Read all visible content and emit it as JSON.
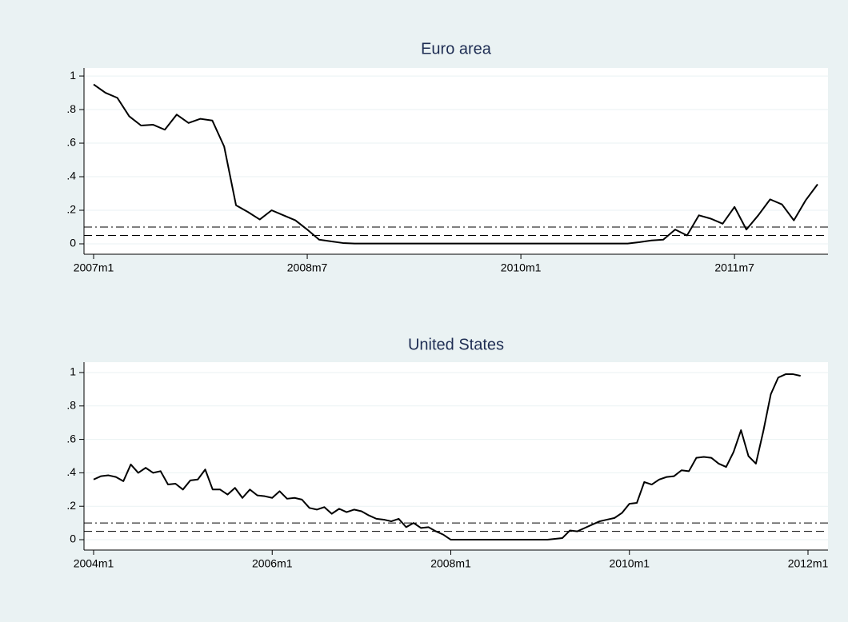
{
  "chart_data": [
    {
      "type": "line",
      "title": "Euro area",
      "x": [
        "2007m1",
        "2007m2",
        "2007m3",
        "2007m4",
        "2007m5",
        "2007m6",
        "2007m7",
        "2007m8",
        "2007m9",
        "2007m10",
        "2007m11",
        "2007m12",
        "2008m1",
        "2008m2",
        "2008m3",
        "2008m4",
        "2008m5",
        "2008m6",
        "2008m7",
        "2008m8",
        "2008m9",
        "2008m10",
        "2008m11",
        "2008m12",
        "2009m1",
        "2009m2",
        "2009m3",
        "2009m4",
        "2009m5",
        "2009m6",
        "2009m7",
        "2009m8",
        "2009m9",
        "2009m10",
        "2009m11",
        "2009m12",
        "2010m1",
        "2010m2",
        "2010m3",
        "2010m4",
        "2010m5",
        "2010m6",
        "2010m7",
        "2010m8",
        "2010m9",
        "2010m10",
        "2010m11",
        "2010m12",
        "2011m1",
        "2011m2",
        "2011m3",
        "2011m4",
        "2011m5",
        "2011m6",
        "2011m7",
        "2011m8",
        "2011m9",
        "2011m10",
        "2011m11",
        "2011m12",
        "2012m1",
        "2012m2"
      ],
      "values": [
        0.95,
        0.9,
        0.87,
        0.76,
        0.705,
        0.71,
        0.68,
        0.77,
        0.72,
        0.745,
        0.735,
        0.58,
        0.23,
        0.19,
        0.145,
        0.2,
        0.17,
        0.14,
        0.085,
        0.025,
        0.015,
        0.005,
        0.002,
        0.002,
        0.002,
        0.002,
        0.002,
        0.002,
        0.002,
        0.002,
        0.002,
        0.002,
        0.002,
        0.002,
        0.002,
        0.002,
        0.002,
        0.002,
        0.002,
        0.002,
        0.002,
        0.002,
        0.002,
        0.002,
        0.002,
        0.002,
        0.01,
        0.02,
        0.025,
        0.085,
        0.05,
        0.17,
        0.15,
        0.12,
        0.22,
        0.085,
        0.17,
        0.265,
        0.235,
        0.14,
        0.26,
        0.355
      ],
      "color": "#000000",
      "xticks": [
        "2007m1",
        "2008m7",
        "2010m1",
        "2011m7"
      ],
      "ylim": [
        -0.062,
        1.048
      ],
      "yticks": [
        0,
        {
          "value": 0.2,
          "label": ".2"
        },
        {
          "value": 0.4,
          "label": ".4"
        },
        {
          "value": 0.6,
          "label": ".6"
        },
        {
          "value": 0.8,
          "label": ".8"
        },
        1
      ],
      "grid": true,
      "hlines": [
        {
          "value": 0.1,
          "style": "dashdot"
        },
        {
          "value": 0.05,
          "style": "dashed"
        }
      ]
    },
    {
      "type": "line",
      "title": "United States",
      "x": [
        "2004m1",
        "2004m2",
        "2004m3",
        "2004m4",
        "2004m5",
        "2004m6",
        "2004m7",
        "2004m8",
        "2004m9",
        "2004m10",
        "2004m11",
        "2004m12",
        "2005m1",
        "2005m2",
        "2005m3",
        "2005m4",
        "2005m5",
        "2005m6",
        "2005m7",
        "2005m8",
        "2005m9",
        "2005m10",
        "2005m11",
        "2005m12",
        "2006m1",
        "2006m2",
        "2006m3",
        "2006m4",
        "2006m5",
        "2006m6",
        "2006m7",
        "2006m8",
        "2006m9",
        "2006m10",
        "2006m11",
        "2006m12",
        "2007m1",
        "2007m2",
        "2007m3",
        "2007m4",
        "2007m5",
        "2007m6",
        "2007m7",
        "2007m8",
        "2007m9",
        "2007m10",
        "2007m11",
        "2007m12",
        "2008m1",
        "2008m2",
        "2008m3",
        "2008m4",
        "2008m5",
        "2008m6",
        "2008m7",
        "2008m8",
        "2008m9",
        "2008m10",
        "2008m11",
        "2008m12",
        "2009m1",
        "2009m2",
        "2009m3",
        "2009m4",
        "2009m5",
        "2009m6",
        "2009m7",
        "2009m8",
        "2009m9",
        "2009m10",
        "2009m11",
        "2009m12",
        "2010m1",
        "2010m2",
        "2010m3",
        "2010m4",
        "2010m5",
        "2010m6",
        "2010m7",
        "2010m8",
        "2010m9",
        "2010m10",
        "2010m11",
        "2010m12",
        "2011m1",
        "2011m2",
        "2011m3",
        "2011m4",
        "2011m5",
        "2011m6",
        "2011m7",
        "2011m8",
        "2011m9",
        "2011m10",
        "2011m11",
        "2011m12"
      ],
      "values": [
        0.36,
        0.38,
        0.385,
        0.375,
        0.35,
        0.45,
        0.4,
        0.43,
        0.4,
        0.41,
        0.33,
        0.335,
        0.3,
        0.355,
        0.36,
        0.42,
        0.3,
        0.3,
        0.27,
        0.31,
        0.25,
        0.3,
        0.265,
        0.26,
        0.25,
        0.29,
        0.245,
        0.25,
        0.24,
        0.19,
        0.18,
        0.195,
        0.155,
        0.185,
        0.165,
        0.18,
        0.17,
        0.145,
        0.125,
        0.12,
        0.11,
        0.125,
        0.075,
        0.1,
        0.07,
        0.075,
        0.05,
        0.03,
        0,
        0,
        0,
        0,
        0,
        0,
        0,
        0,
        0,
        0,
        0,
        0,
        0,
        0,
        0.005,
        0.01,
        0.055,
        0.05,
        0.07,
        0.09,
        0.11,
        0.12,
        0.13,
        0.16,
        0.215,
        0.22,
        0.345,
        0.33,
        0.36,
        0.375,
        0.38,
        0.415,
        0.41,
        0.49,
        0.495,
        0.49,
        0.455,
        0.435,
        0.525,
        0.655,
        0.5,
        0.455,
        0.65,
        0.87,
        0.97,
        0.99,
        0.99,
        0.98
      ],
      "color": "#000000",
      "xticks": [
        "2004m1",
        "2006m1",
        "2008m1",
        "2010m1",
        "2012m1"
      ],
      "ylim": [
        -0.062,
        1.062
      ],
      "yticks": [
        0,
        {
          "value": 0.2,
          "label": ".2"
        },
        {
          "value": 0.4,
          "label": ".4"
        },
        {
          "value": 0.6,
          "label": ".6"
        },
        {
          "value": 0.8,
          "label": ".8"
        },
        1
      ],
      "grid": true,
      "hlines": [
        {
          "value": 0.1,
          "style": "dashdot"
        },
        {
          "value": 0.05,
          "style": "dashed"
        }
      ]
    }
  ]
}
